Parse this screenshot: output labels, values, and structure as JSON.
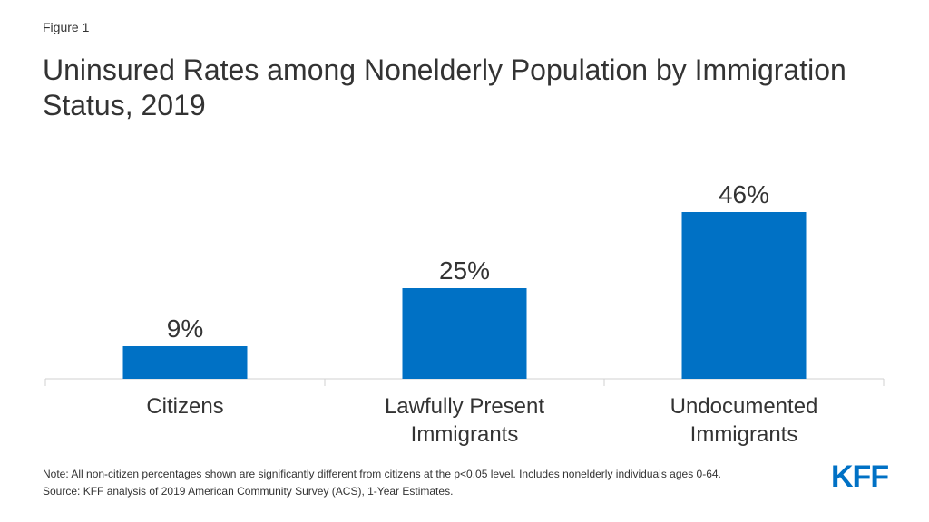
{
  "figure_label": "Figure 1",
  "chart_data": {
    "type": "bar",
    "title": "Uninsured Rates among Nonelderly Population by Immigration Status, 2019",
    "categories": [
      [
        "Citizens"
      ],
      [
        "Lawfully Present",
        "Immigrants"
      ],
      [
        "Undocumented",
        "Immigrants"
      ]
    ],
    "values": [
      9,
      25,
      46
    ],
    "value_labels": [
      "9%",
      "25%",
      "46%"
    ],
    "xlabel": "",
    "ylabel": "",
    "ylim": [
      0,
      50
    ],
    "grid": false,
    "legend": "none",
    "bar_color": "#0071c5"
  },
  "notes": {
    "note": "Note: All non-citizen percentages shown are significantly different from citizens at the p<0.05 level. Includes nonelderly individuals ages 0-64.",
    "source": "Source: KFF analysis of 2019 American Community Survey (ACS), 1-Year Estimates."
  },
  "logo": {
    "text": "KFF",
    "color": "#0071c5"
  }
}
